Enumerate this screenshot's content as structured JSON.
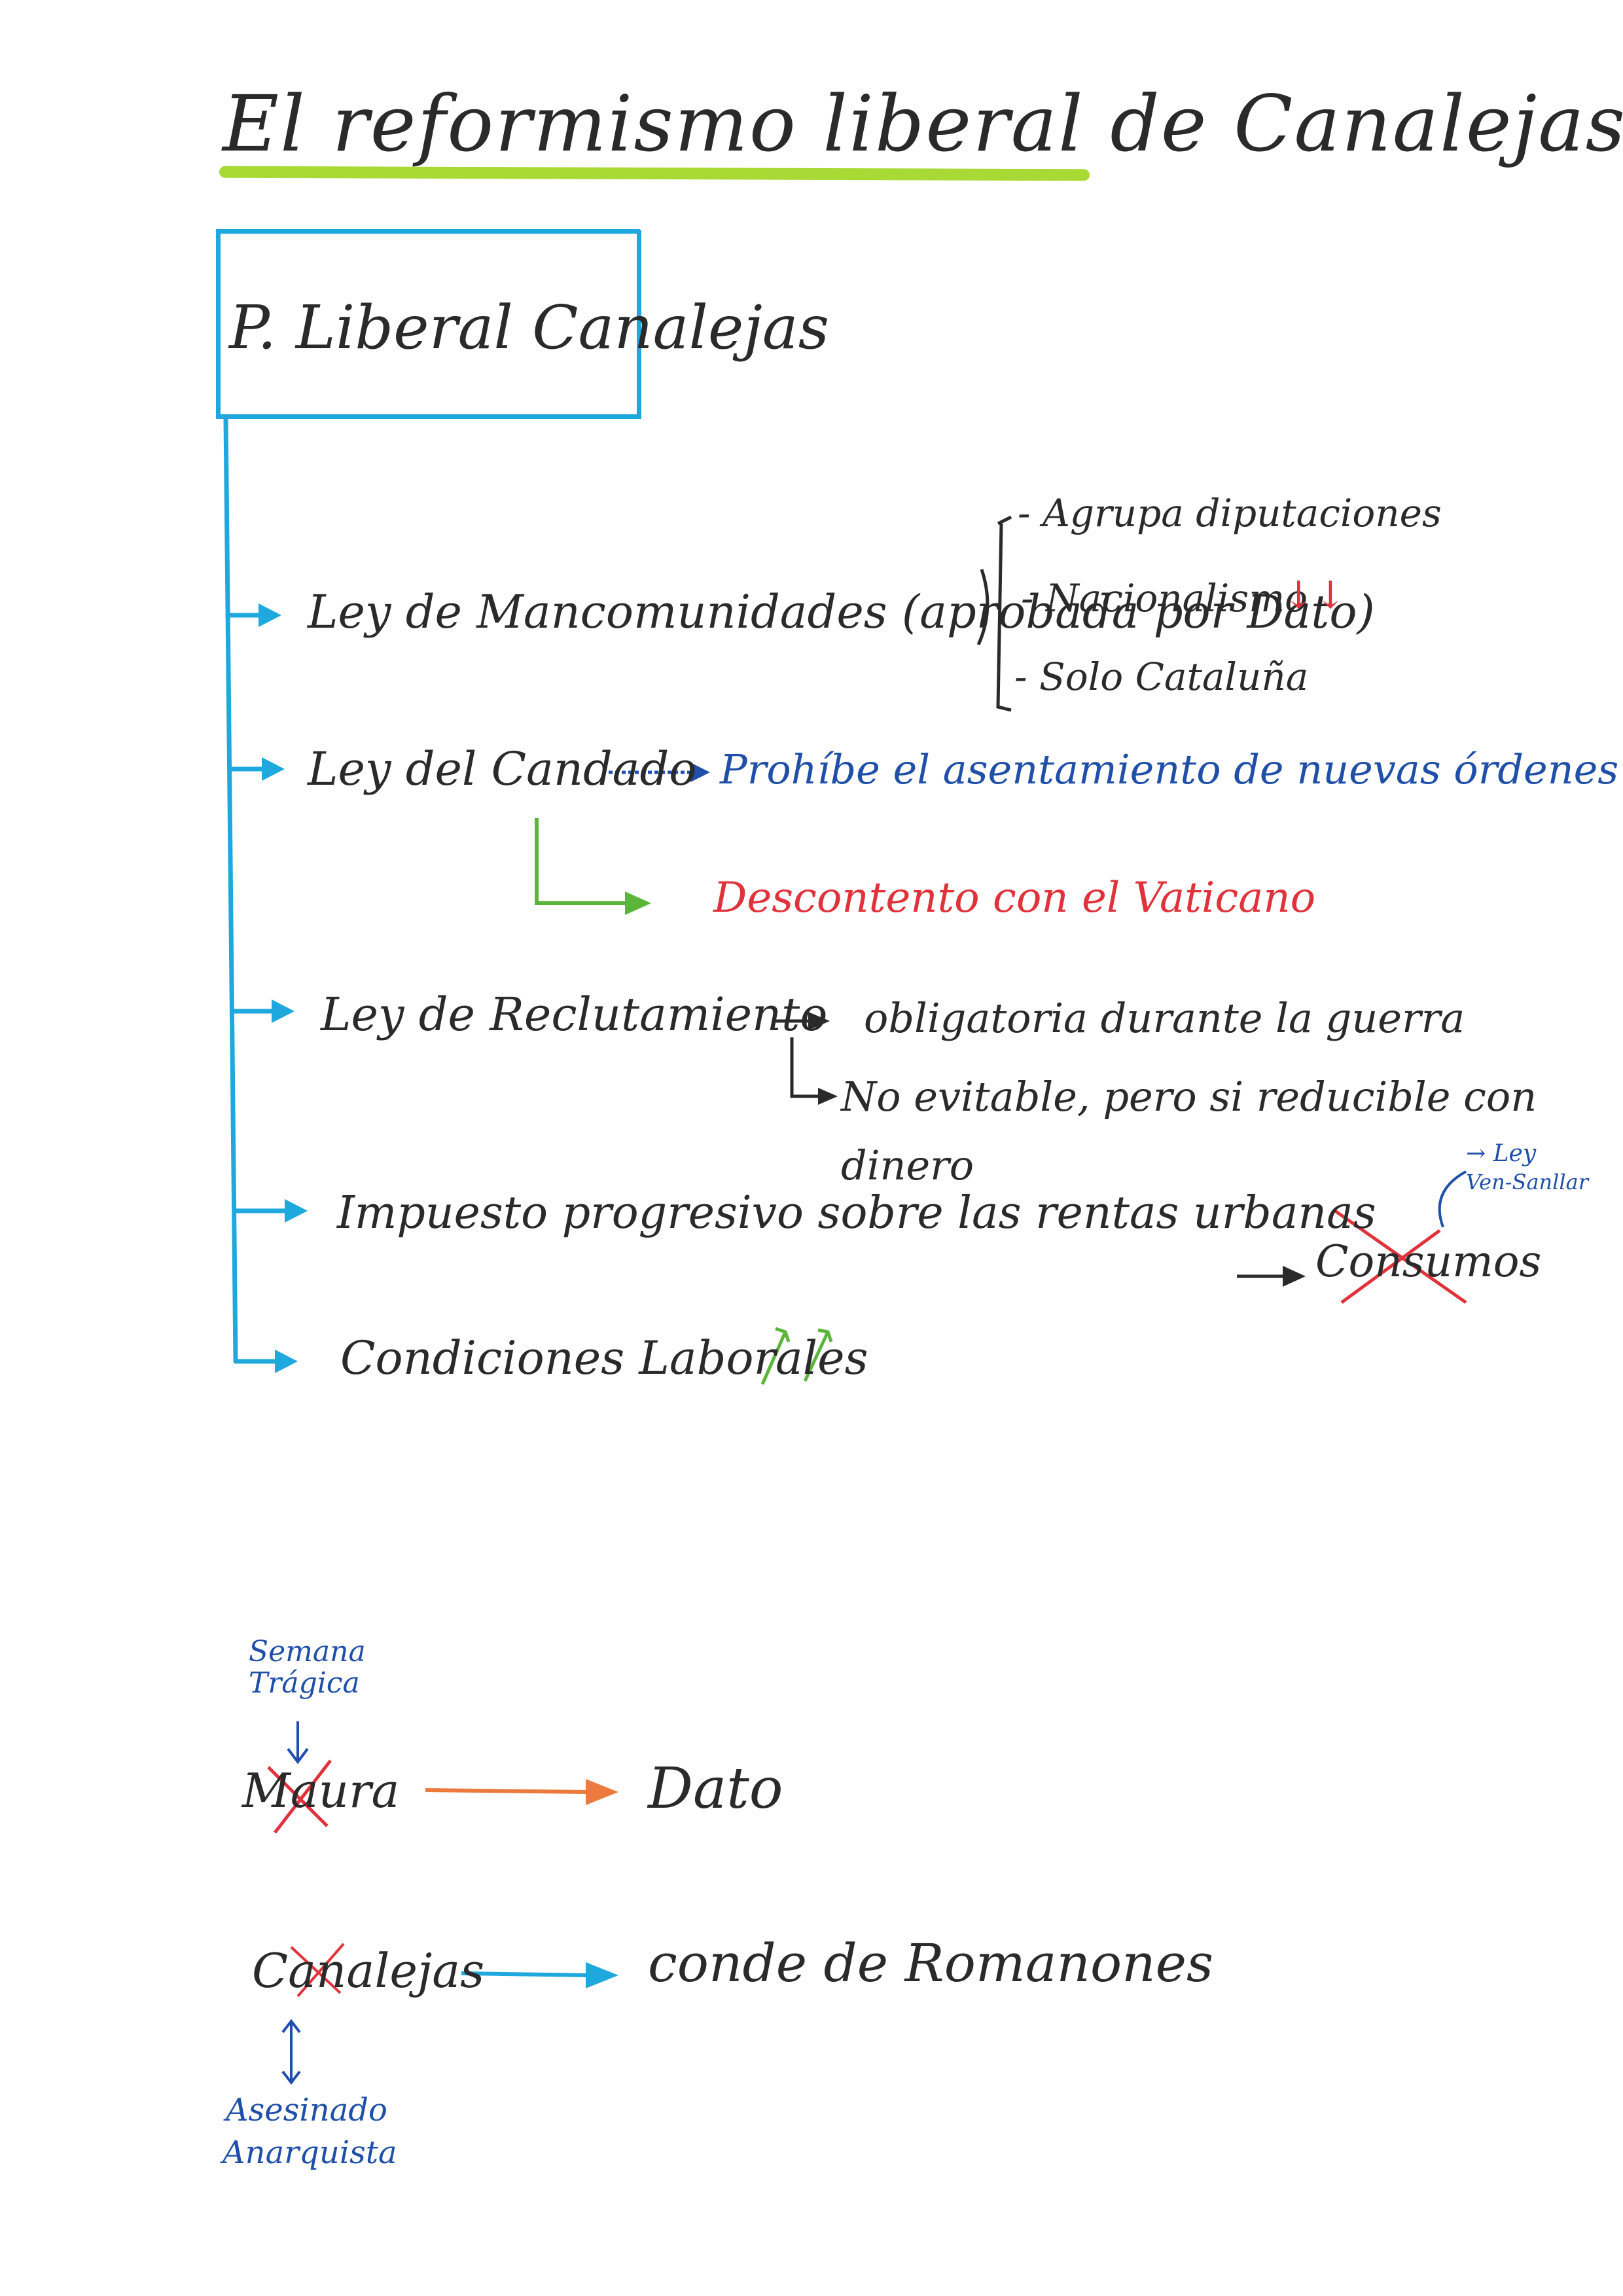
{
  "title": "El reformismo liberal de Canalejas",
  "box_label": "P. Liberal Canalejas",
  "items": [
    {
      "label": "Ley de Mancomunidades (aprobada por Dato)",
      "notes": [
        "- Agrupa diputaciones",
        "- Nacionalismo",
        "- Solo Cataluña"
      ],
      "mark": "↓↓"
    },
    {
      "label": "Ley del Candado",
      "result": "Prohíbe el asentamiento de nuevas órdenes",
      "consequence": "Descontento con el Vaticano"
    },
    {
      "label": "Ley de Reclutamiento",
      "result": "obligatoria durante la guerra",
      "result2_a": "No evitable, pero si reducible con",
      "result2_b": "dinero"
    },
    {
      "label": "Impuesto progresivo sobre las rentas urbanas",
      "result": "Consumos",
      "aside": "→ Ley",
      "aside2": "Ven-Sanllar"
    },
    {
      "label": "Condiciones Laborales",
      "mark": "↑↑"
    }
  ],
  "timeline": {
    "first": {
      "note": "Semana Trágica",
      "from": "Maura",
      "to": "Dato"
    },
    "second": {
      "from": "Canalejas",
      "to": "conde de Romanones",
      "note": "Asesinado",
      "note2": "Anarquista"
    }
  },
  "colors": {
    "ink": "#2a2a2a",
    "blue": "#1fa8de",
    "navy": "#1f4fa8",
    "red": "#e0323a",
    "green": "#5bb53a",
    "lime": "#a9d934",
    "orange": "#ec7a3c"
  }
}
